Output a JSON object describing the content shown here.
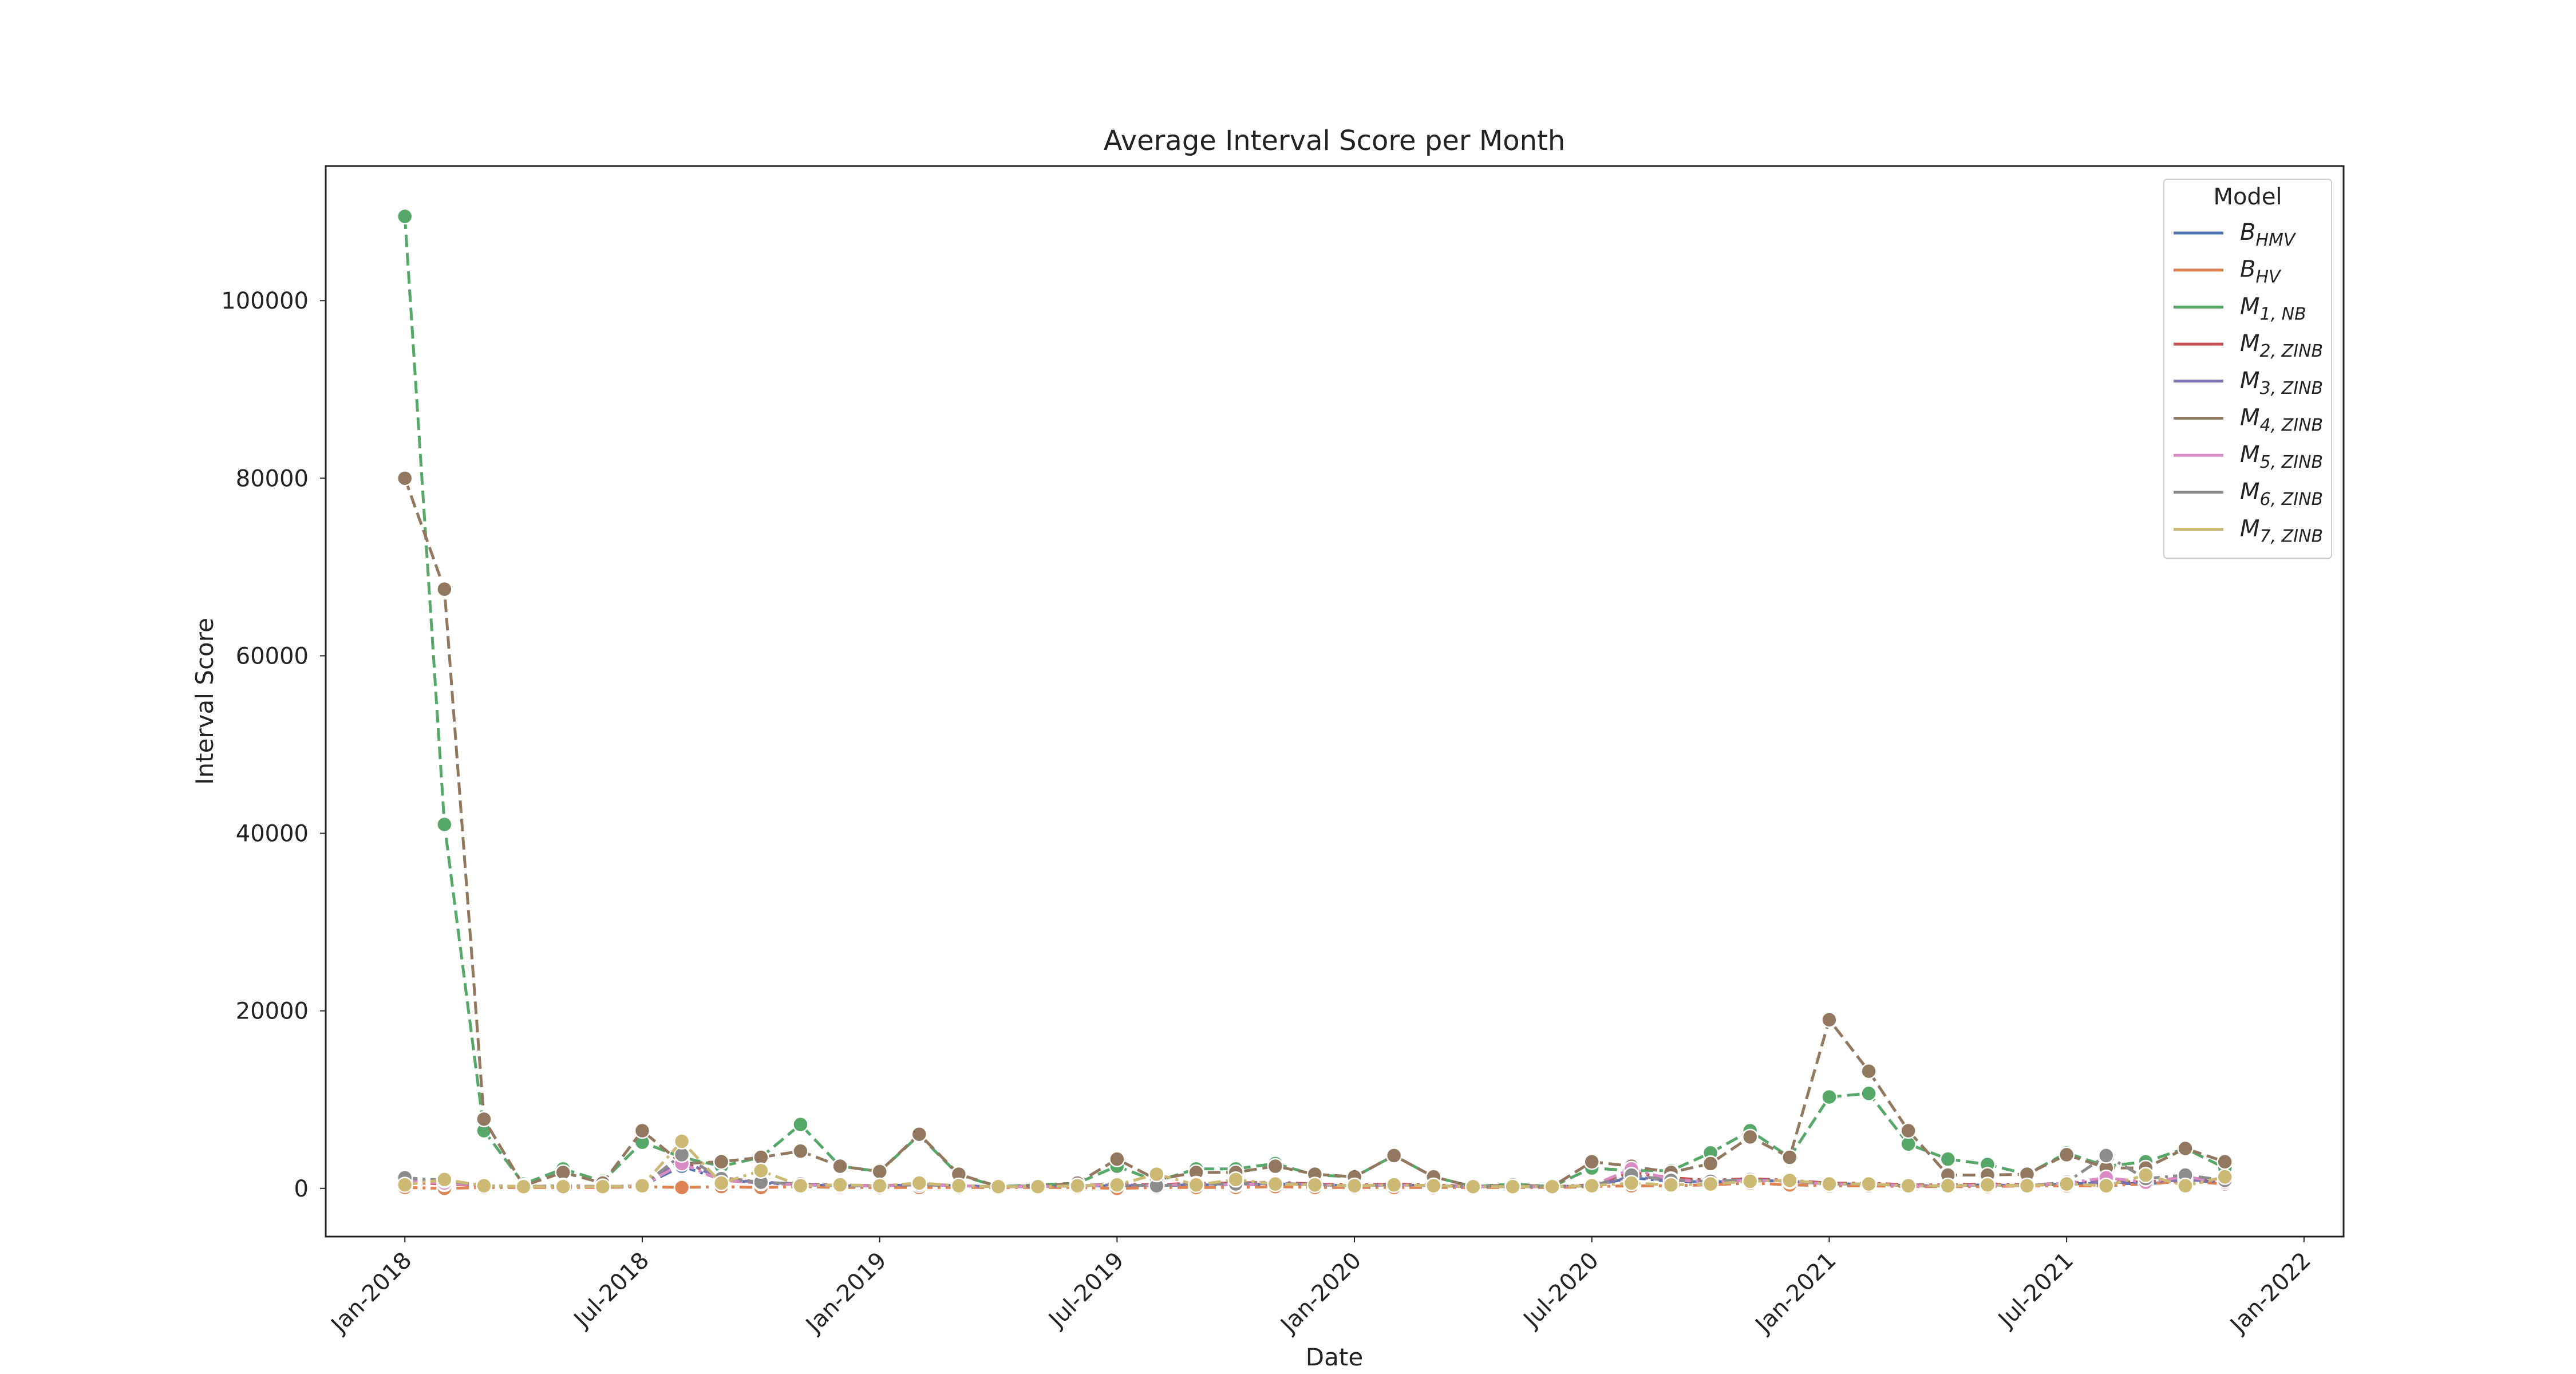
{
  "chart_data": {
    "type": "line",
    "title": "Average Interval Score per Month",
    "x_label": "Date",
    "y_label": "Interval Score",
    "legend_title": "Model",
    "legend_position": "upper right",
    "grid": false,
    "x": [
      "2018-01",
      "2018-02",
      "2018-03",
      "2018-04",
      "2018-05",
      "2018-06",
      "2018-07",
      "2018-08",
      "2018-09",
      "2018-10",
      "2018-11",
      "2018-12",
      "2019-01",
      "2019-02",
      "2019-03",
      "2019-04",
      "2019-05",
      "2019-06",
      "2019-07",
      "2019-08",
      "2019-09",
      "2019-10",
      "2019-11",
      "2019-12",
      "2020-01",
      "2020-02",
      "2020-03",
      "2020-04",
      "2020-05",
      "2020-06",
      "2020-07",
      "2020-08",
      "2020-09",
      "2020-10",
      "2020-11",
      "2020-12",
      "2021-01",
      "2021-02",
      "2021-03",
      "2021-04",
      "2021-05",
      "2021-06",
      "2021-07",
      "2021-08",
      "2021-09",
      "2021-10",
      "2021-11"
    ],
    "xlim": [
      "2017-11",
      "2022-02"
    ],
    "xticks": [
      {
        "value": "2018-01",
        "label": "Jan-2018"
      },
      {
        "value": "2018-07",
        "label": "Jul-2018"
      },
      {
        "value": "2019-01",
        "label": "Jan-2019"
      },
      {
        "value": "2019-07",
        "label": "Jul-2019"
      },
      {
        "value": "2020-01",
        "label": "Jan-2020"
      },
      {
        "value": "2020-07",
        "label": "Jul-2020"
      },
      {
        "value": "2021-01",
        "label": "Jan-2021"
      },
      {
        "value": "2021-07",
        "label": "Jul-2021"
      },
      {
        "value": "2022-01",
        "label": "Jan-2022"
      }
    ],
    "ylim": [
      -5430,
      115170
    ],
    "yticks": [
      0,
      20000,
      40000,
      60000,
      80000,
      100000
    ],
    "series": [
      {
        "name": "B",
        "sub": "HMV",
        "color": "#4c72b0",
        "linestyle": "-.",
        "values": [
          900,
          700,
          300,
          200,
          300,
          200,
          300,
          2500,
          1000,
          600,
          400,
          300,
          300,
          400,
          300,
          200,
          200,
          300,
          300,
          300,
          400,
          400,
          500,
          400,
          300,
          400,
          300,
          200,
          200,
          200,
          300,
          1200,
          800,
          700,
          900,
          800,
          500,
          500,
          300,
          300,
          400,
          300,
          500,
          600,
          500,
          900,
          700
        ]
      },
      {
        "name": "B",
        "sub": "HV",
        "color": "#dd8452",
        "linestyle": "-.",
        "values": [
          100,
          0,
          100,
          100,
          100,
          100,
          200,
          100,
          200,
          100,
          200,
          100,
          100,
          100,
          100,
          100,
          100,
          100,
          0,
          100,
          100,
          100,
          200,
          100,
          100,
          100,
          100,
          100,
          100,
          100,
          200,
          300,
          300,
          400,
          600,
          400,
          300,
          300,
          200,
          200,
          200,
          300,
          300,
          300,
          500,
          800,
          500
        ]
      },
      {
        "name": "M",
        "sub": "1, NB",
        "color": "#55a868",
        "linestyle": "--",
        "values": [
          109500,
          41000,
          6500,
          500,
          2200,
          800,
          5200,
          3500,
          2500,
          3500,
          7200,
          2500,
          1900,
          6000,
          1500,
          200,
          400,
          600,
          2500,
          800,
          2200,
          2200,
          2800,
          1500,
          1300,
          3700,
          1300,
          200,
          500,
          200,
          2300,
          2000,
          2000,
          4000,
          6500,
          3500,
          10300,
          10700,
          5000,
          3300,
          2700,
          1600,
          4000,
          2500,
          3000,
          4500,
          2300
        ]
      },
      {
        "name": "M",
        "sub": "2, ZINB",
        "color": "#c44e52",
        "linestyle": "-.",
        "values": [
          700,
          500,
          300,
          200,
          300,
          200,
          300,
          3000,
          1200,
          700,
          500,
          400,
          300,
          500,
          300,
          200,
          200,
          300,
          500,
          400,
          600,
          600,
          700,
          500,
          400,
          500,
          400,
          200,
          200,
          200,
          400,
          1800,
          1200,
          900,
          1100,
          900,
          600,
          600,
          400,
          400,
          500,
          400,
          600,
          800,
          700,
          1100,
          800
        ]
      },
      {
        "name": "M",
        "sub": "3, ZINB",
        "color": "#8172b3",
        "linestyle": "-.",
        "values": [
          1000,
          800,
          300,
          200,
          300,
          200,
          300,
          3200,
          1000,
          700,
          500,
          300,
          300,
          400,
          300,
          200,
          200,
          300,
          400,
          300,
          500,
          500,
          600,
          400,
          300,
          400,
          300,
          200,
          200,
          200,
          300,
          1300,
          900,
          800,
          1000,
          800,
          500,
          500,
          300,
          300,
          400,
          300,
          600,
          700,
          600,
          1000,
          700
        ]
      },
      {
        "name": "M",
        "sub": "4, ZINB",
        "color": "#937860",
        "linestyle": "--",
        "values": [
          80000,
          67500,
          7800,
          300,
          1800,
          600,
          6500,
          2800,
          3000,
          3500,
          4200,
          2500,
          1900,
          6100,
          1600,
          200,
          300,
          600,
          3300,
          1000,
          1800,
          1800,
          2500,
          1600,
          1300,
          3700,
          1300,
          200,
          400,
          200,
          3000,
          2500,
          1800,
          2800,
          5800,
          3500,
          19000,
          13200,
          6500,
          1500,
          1500,
          1600,
          3800,
          2300,
          2300,
          4500,
          3000
        ]
      },
      {
        "name": "M",
        "sub": "5, ZINB",
        "color": "#da8bc3",
        "linestyle": "-.",
        "values": [
          800,
          600,
          300,
          200,
          300,
          200,
          300,
          2800,
          900,
          600,
          400,
          300,
          300,
          400,
          300,
          200,
          200,
          300,
          400,
          300,
          500,
          400,
          600,
          400,
          300,
          400,
          300,
          200,
          200,
          200,
          300,
          2200,
          1000,
          700,
          900,
          800,
          500,
          500,
          300,
          300,
          400,
          300,
          600,
          1200,
          700,
          1300,
          700
        ]
      },
      {
        "name": "M",
        "sub": "6, ZINB",
        "color": "#8c8c8c",
        "linestyle": "-.",
        "values": [
          1200,
          900,
          300,
          200,
          300,
          200,
          300,
          3800,
          1100,
          700,
          500,
          300,
          300,
          400,
          300,
          200,
          200,
          300,
          400,
          300,
          500,
          500,
          600,
          400,
          300,
          400,
          300,
          200,
          200,
          200,
          300,
          1500,
          900,
          800,
          1000,
          800,
          500,
          500,
          300,
          300,
          400,
          300,
          700,
          3700,
          1100,
          1500,
          900
        ]
      },
      {
        "name": "M",
        "sub": "7, ZINB",
        "color": "#ccb974",
        "linestyle": "-.",
        "values": [
          400,
          1000,
          300,
          200,
          200,
          200,
          300,
          5300,
          600,
          2000,
          300,
          400,
          300,
          600,
          300,
          200,
          200,
          300,
          400,
          1600,
          400,
          1000,
          500,
          400,
          300,
          400,
          300,
          200,
          200,
          200,
          300,
          600,
          400,
          500,
          800,
          900,
          500,
          500,
          300,
          300,
          400,
          300,
          500,
          300,
          1500,
          300,
          1300
        ]
      }
    ]
  }
}
